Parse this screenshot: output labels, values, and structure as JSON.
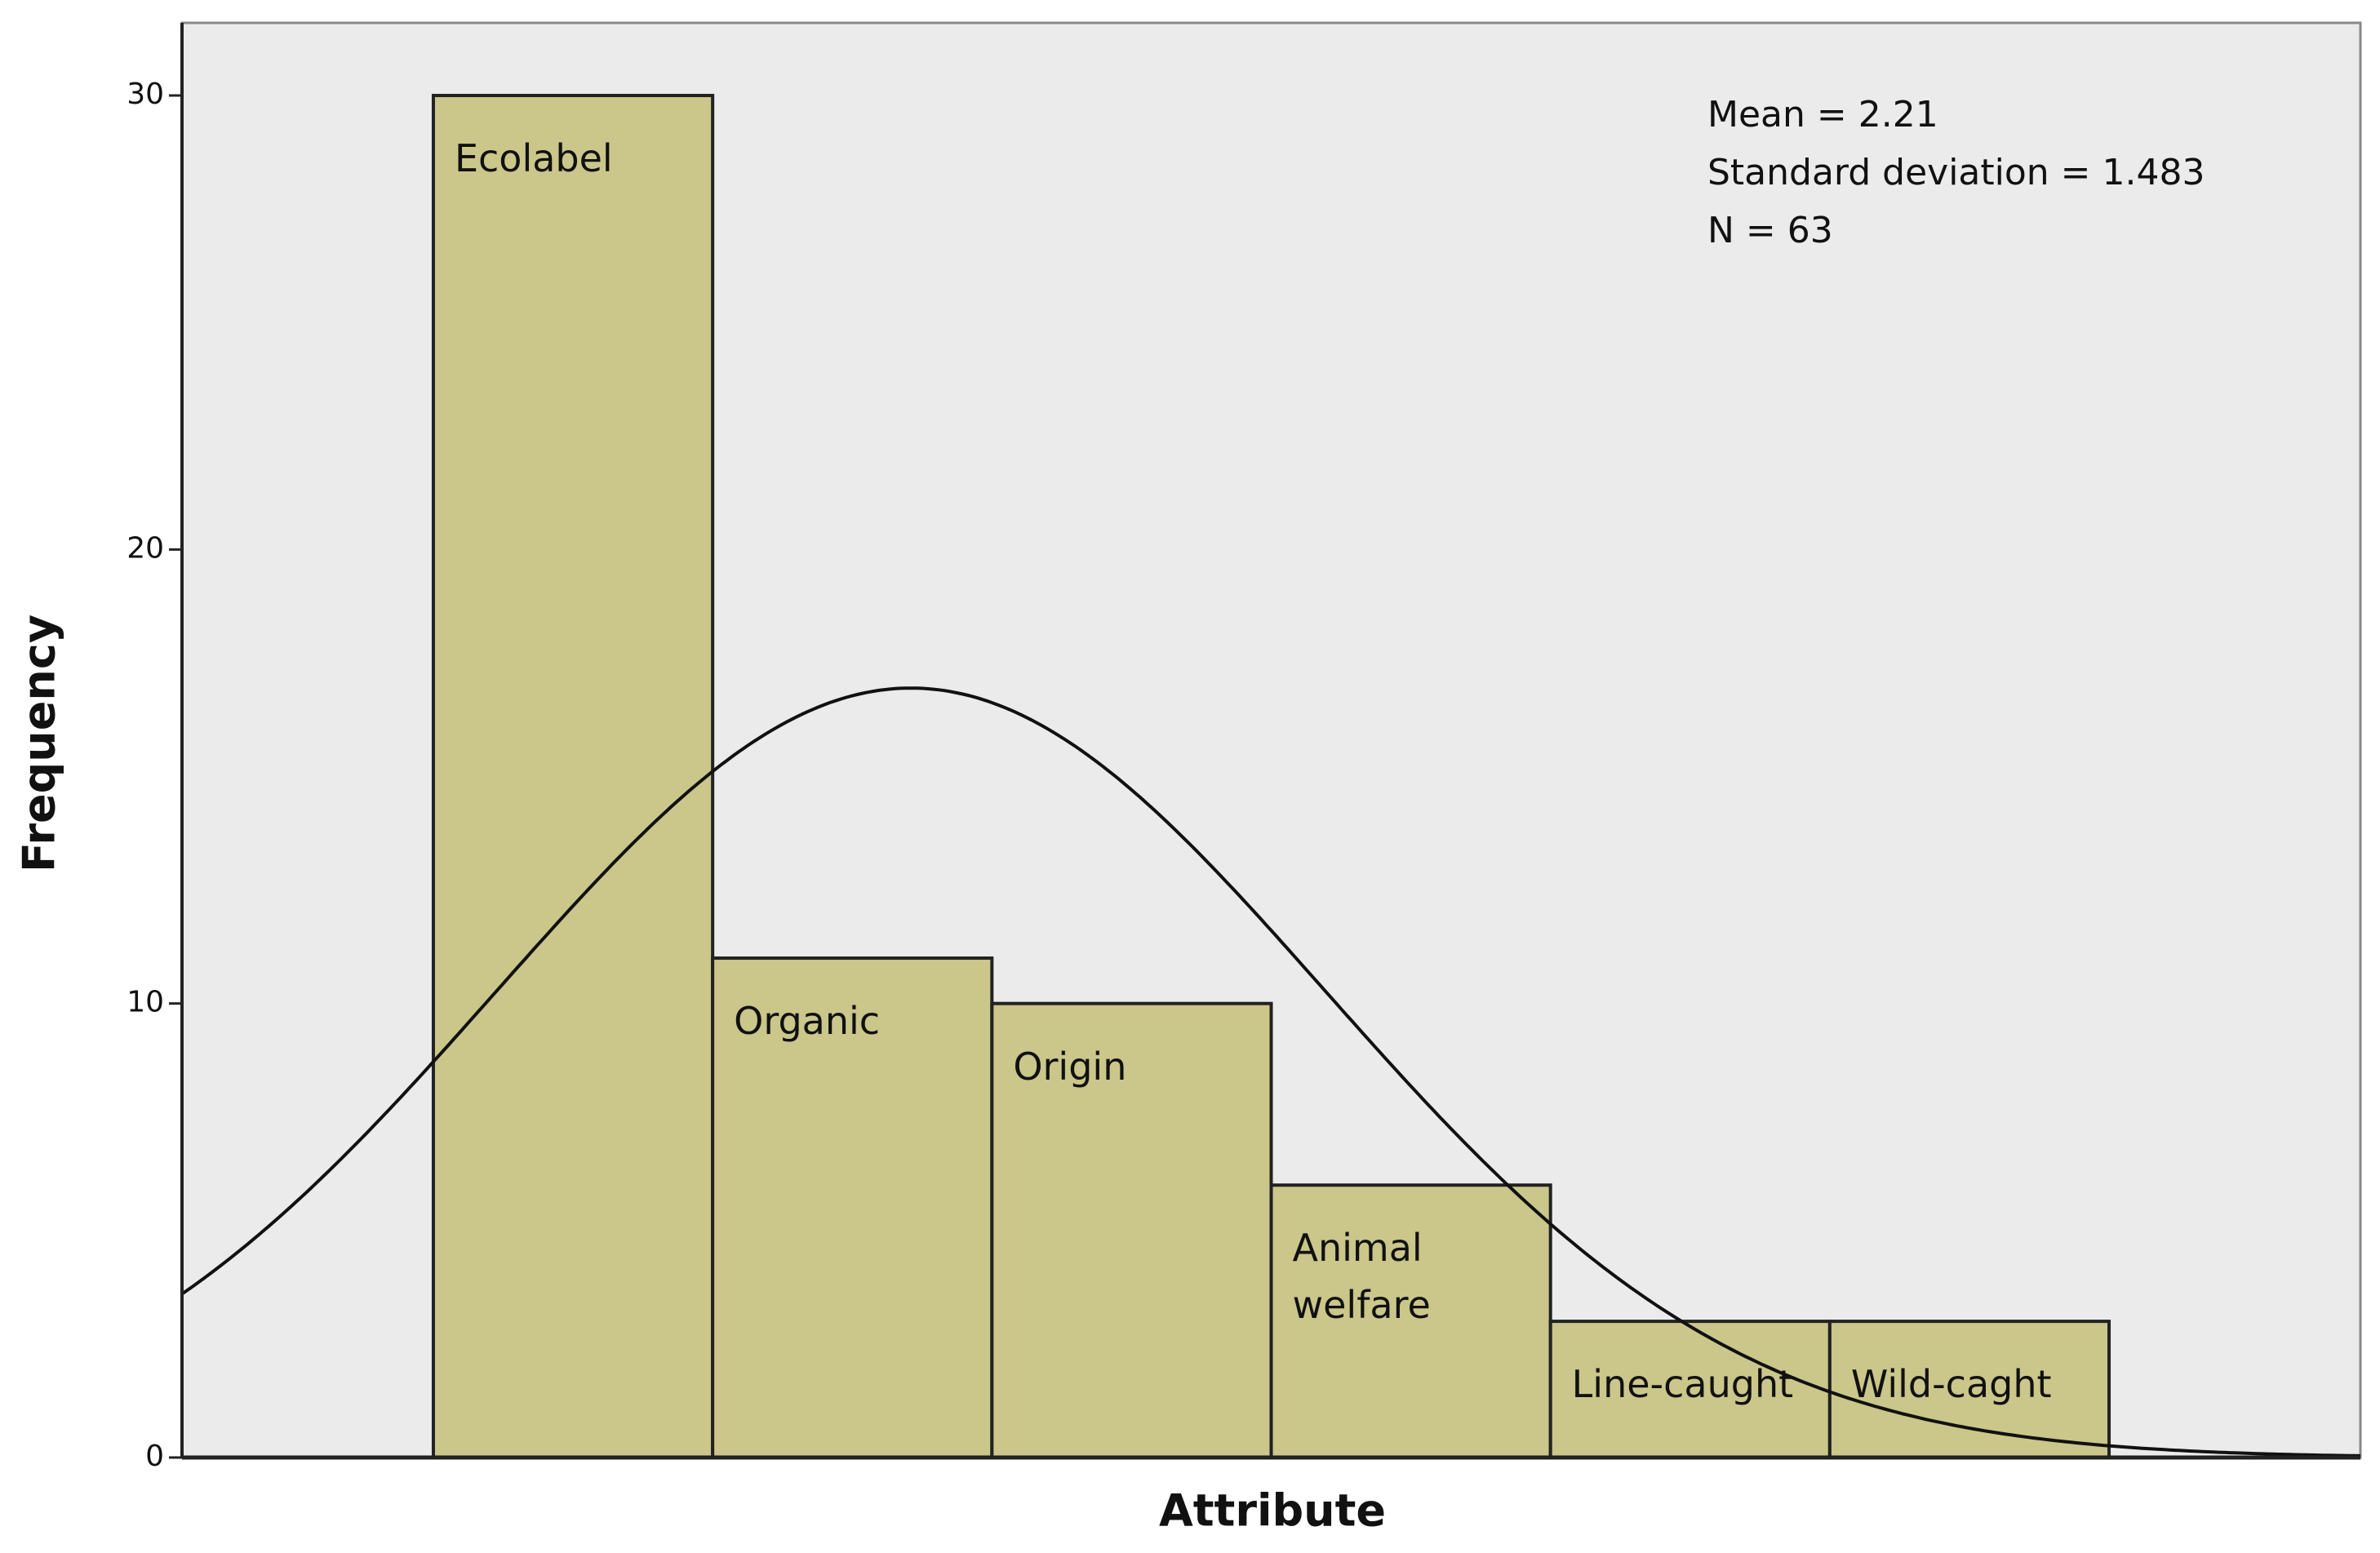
{
  "chart_data": {
    "type": "histogram",
    "x_label": "Attribute",
    "y_label": "Frequency",
    "bins": [
      0.5,
      1.5,
      2.5,
      3.5,
      4.5,
      5.5,
      6.5
    ],
    "values": [
      30,
      11,
      10,
      6,
      3,
      3
    ],
    "bar_labels": [
      "Ecolabel",
      "Organic",
      "Origin",
      "Animal welfare",
      "Line-caught",
      "Wild-caght"
    ],
    "color": "#cbc68a",
    "xlim": [
      -0.4,
      7.4
    ],
    "ylim": [
      0,
      31.6
    ],
    "yticks": [
      0,
      10,
      20,
      30
    ],
    "annotations": [
      "Mean = 2.21",
      "Standard deviation = 1.483",
      "N = 63"
    ],
    "normal_curve": {
      "mean": 2.21,
      "sd": 1.483,
      "n": 63
    }
  }
}
